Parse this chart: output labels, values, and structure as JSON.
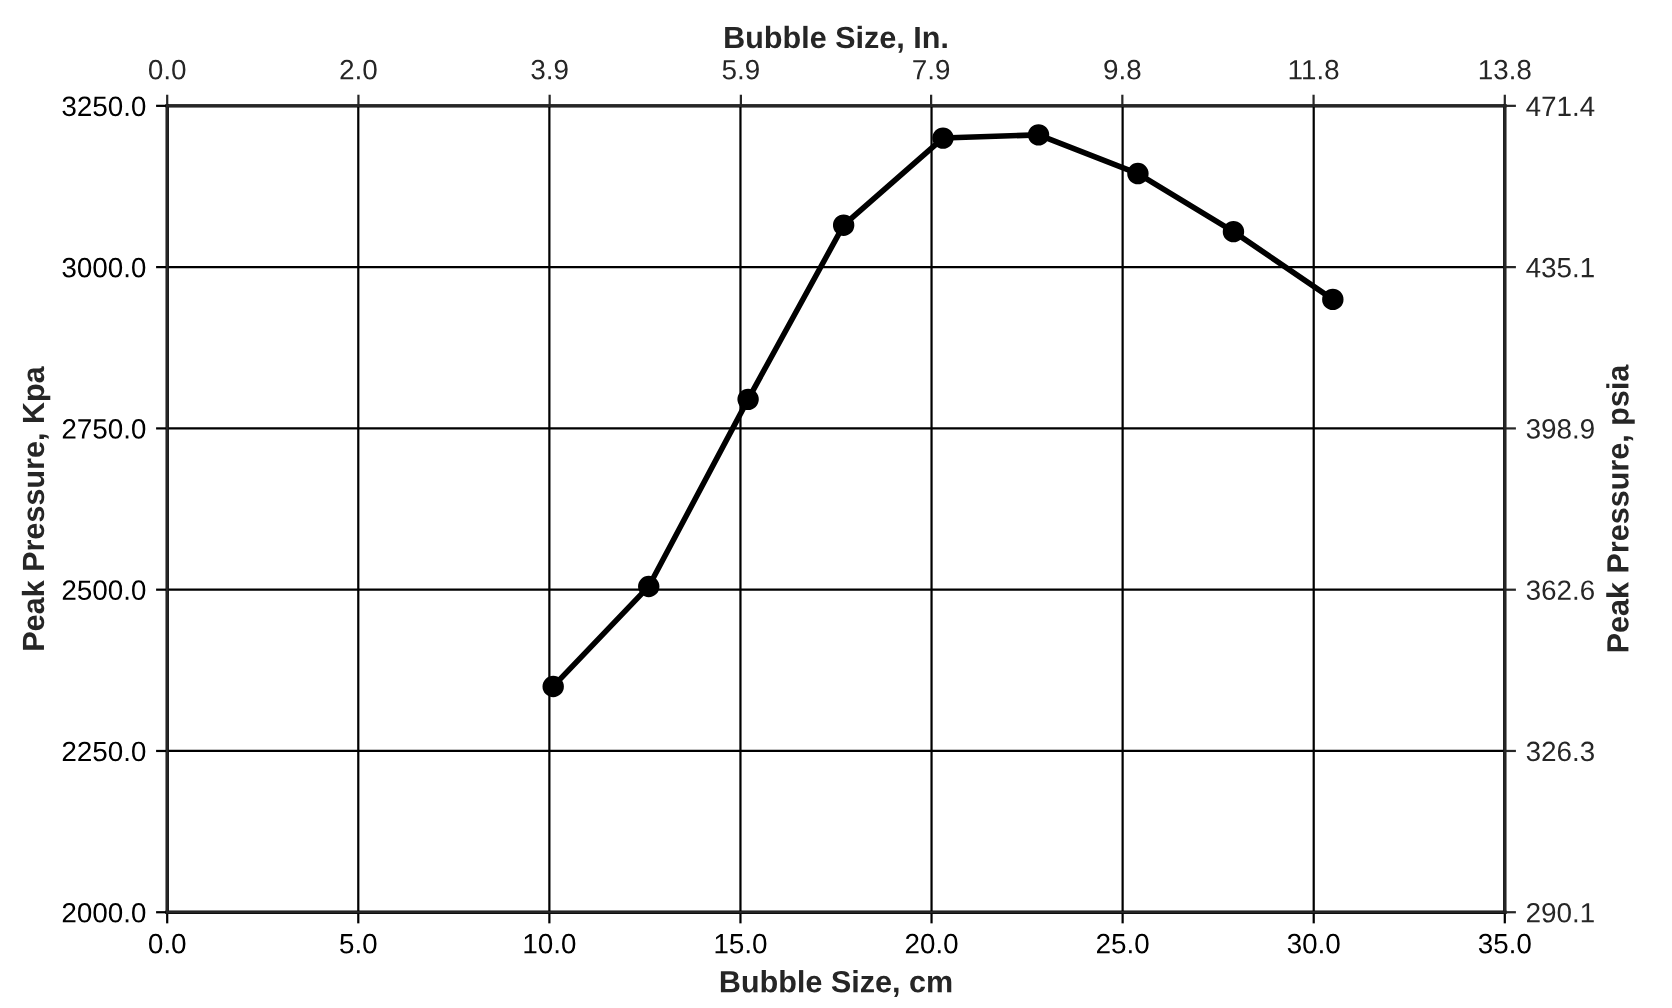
{
  "chart_data": {
    "type": "line",
    "xlabel": "Bubble Size, cm",
    "ylabel": "Peak Pressure, Kpa",
    "y2label": "Peak Pressure, psia",
    "x2label": "Bubble Size, In.",
    "x": [
      10.1,
      12.6,
      15.2,
      17.7,
      20.3,
      22.8,
      25.4,
      27.9,
      30.5
    ],
    "series": [
      {
        "color": "#000000",
        "values": [
          2350,
          2505,
          2795,
          3065,
          3200,
          3205,
          3145,
          3055,
          2950
        ]
      }
    ],
    "xlim": [
      0,
      35
    ],
    "xticks": [
      {
        "value": 0,
        "label": "0.0"
      },
      {
        "value": 5,
        "label": "5.0"
      },
      {
        "value": 10,
        "label": "10.0"
      },
      {
        "value": 15,
        "label": "15.0"
      },
      {
        "value": 20,
        "label": "20.0"
      },
      {
        "value": 25,
        "label": "25.0"
      },
      {
        "value": 30,
        "label": "30.0"
      },
      {
        "value": 35,
        "label": "35.0"
      }
    ],
    "ylim": [
      2000,
      3250
    ],
    "yticks": [
      {
        "value": 2000,
        "label": "2000.0"
      },
      {
        "value": 2250,
        "label": "2250.0"
      },
      {
        "value": 2500,
        "label": "2500.0"
      },
      {
        "value": 2750,
        "label": "2750.0"
      },
      {
        "value": 3000,
        "label": "3000.0"
      },
      {
        "value": 3250,
        "label": "3250.0"
      }
    ],
    "x2lim": [
      0,
      13.78
    ],
    "x2ticks": [
      {
        "value": 0,
        "label": "0.0"
      },
      {
        "value": 1.97,
        "label": "2.0"
      },
      {
        "value": 3.94,
        "label": "3.9"
      },
      {
        "value": 5.91,
        "label": "5.9"
      },
      {
        "value": 7.87,
        "label": "7.9"
      },
      {
        "value": 9.84,
        "label": "9.8"
      },
      {
        "value": 11.81,
        "label": "11.8"
      },
      {
        "value": 13.78,
        "label": "13.8"
      }
    ],
    "y2lim": [
      290.08,
      471.37
    ],
    "y2ticks": [
      {
        "value": 290.08,
        "label": "290.1"
      },
      {
        "value": 326.34,
        "label": "326.3"
      },
      {
        "value": 362.59,
        "label": "362.6"
      },
      {
        "value": 398.85,
        "label": "398.9"
      },
      {
        "value": 435.11,
        "label": "435.1"
      },
      {
        "value": 471.37,
        "label": "471.4"
      }
    ],
    "grid": true,
    "marker": "circle",
    "line_style": "solid"
  }
}
